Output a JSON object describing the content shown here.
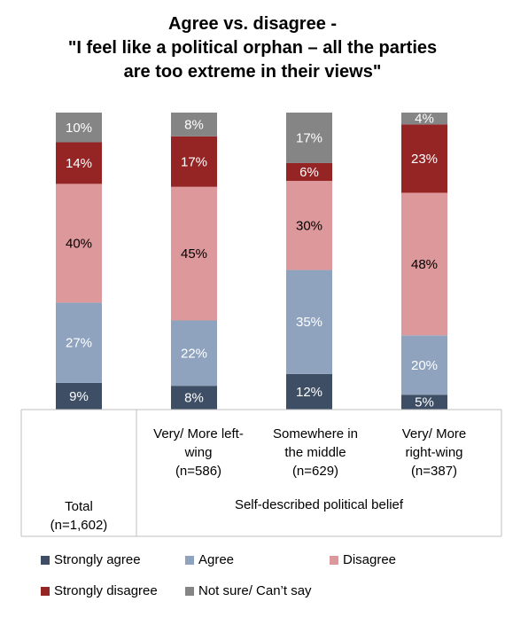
{
  "chart_data": {
    "type": "bar",
    "stacked": true,
    "title_lines": [
      "Agree vs. disagree -",
      "\"I feel like a political orphan – all the parties",
      "are too extreme in their views\""
    ],
    "categories": [
      {
        "lines": [
          "Total",
          "(n=1,602)"
        ]
      },
      {
        "lines": [
          "Very/ More left-",
          "wing",
          "(n=586)"
        ]
      },
      {
        "lines": [
          "Somewhere in",
          "the middle",
          "(n=629)"
        ]
      },
      {
        "lines": [
          "Very/ More",
          "right-wing",
          "(n=387)"
        ]
      }
    ],
    "group_label": "Self-described political belief",
    "series": [
      {
        "name": "Strongly agree",
        "color": "#3e4e64",
        "values": [
          9,
          8,
          12,
          5
        ],
        "labels": [
          "9%",
          "8%",
          "12%",
          "5%"
        ],
        "label_color": "#ffffff"
      },
      {
        "name": "Agree",
        "color": "#8fa3bf",
        "values": [
          27,
          22,
          35,
          20
        ],
        "labels": [
          "27%",
          "22%",
          "35%",
          "20%"
        ],
        "label_color": "#ffffff"
      },
      {
        "name": "Disagree",
        "color": "#dc989a",
        "values": [
          40,
          45,
          30,
          48
        ],
        "labels": [
          "40%",
          "45%",
          "30%",
          "48%"
        ],
        "label_color": "#000000"
      },
      {
        "name": "Strongly disagree",
        "color": "#952525",
        "values": [
          14,
          17,
          6,
          23
        ],
        "labels": [
          "14%",
          "17%",
          "6%",
          "23%"
        ],
        "label_color": "#ffffff"
      },
      {
        "name": "Not sure/ Can’t say",
        "color": "#858585",
        "values": [
          10,
          8,
          17,
          4
        ],
        "labels": [
          "10%",
          "8%",
          "17%",
          "4%"
        ],
        "label_color": "#ffffff"
      }
    ],
    "ylim": [
      0,
      100
    ],
    "legend_position": "bottom"
  }
}
